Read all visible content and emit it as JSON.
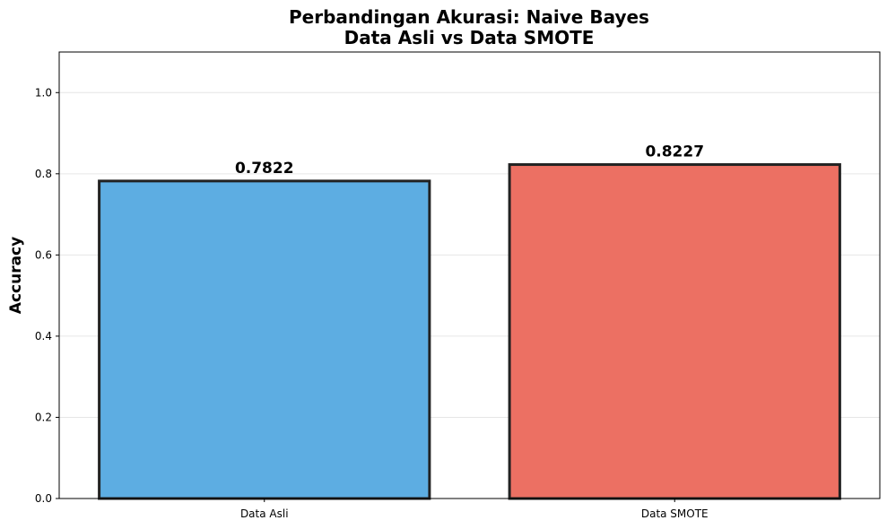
{
  "chart_data": {
    "type": "bar",
    "title_lines": [
      "Perbandingan Akurasi: Naive Bayes",
      "Data Asli vs Data SMOTE"
    ],
    "xlabel": "",
    "ylabel": "Accuracy",
    "ylim": [
      0,
      1.1
    ],
    "yticks": [
      0.0,
      0.2,
      0.4,
      0.6,
      0.8,
      1.0
    ],
    "ytick_labels": [
      "0.0",
      "0.2",
      "0.4",
      "0.6",
      "0.8",
      "1.0"
    ],
    "grid": "y-axis, light",
    "categories": [
      "Data Asli",
      "Data SMOTE"
    ],
    "values": [
      0.7822,
      0.8227
    ],
    "value_labels": [
      "0.7822",
      "0.8227"
    ],
    "colors": [
      "#5dade2",
      "#ec7063"
    ],
    "edge_color": "#222222"
  }
}
